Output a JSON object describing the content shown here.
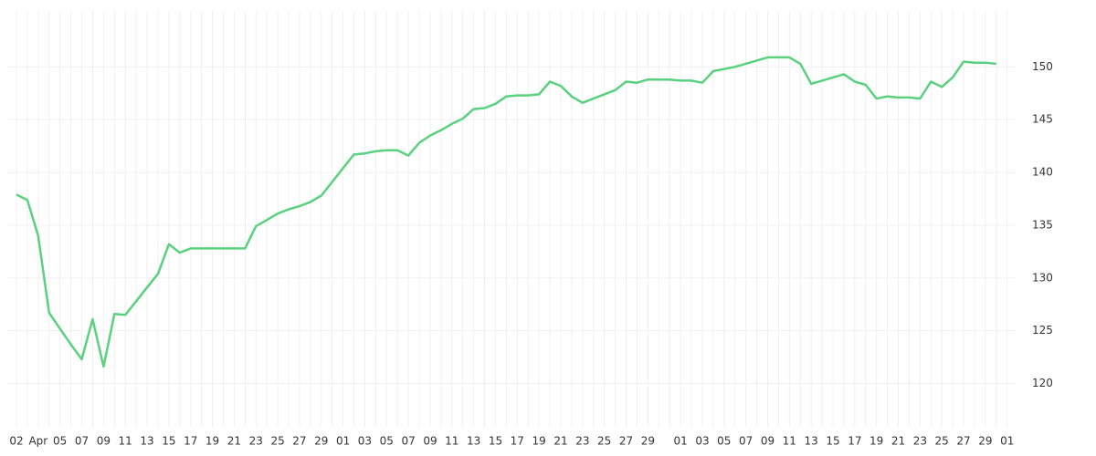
{
  "chart_data": {
    "type": "line",
    "categories": [
      "02",
      null,
      "Apr",
      null,
      "05",
      null,
      "07",
      null,
      "09",
      null,
      "11",
      null,
      "13",
      null,
      "15",
      null,
      "17",
      null,
      "19",
      null,
      "21",
      null,
      "23",
      null,
      "25",
      null,
      "27",
      null,
      "29",
      null,
      "01",
      null,
      "03",
      null,
      "05",
      null,
      "07",
      null,
      "09",
      null,
      "11",
      null,
      "13",
      null,
      "15",
      null,
      "17",
      null,
      "19",
      null,
      "21",
      null,
      "23",
      null,
      "25",
      null,
      "27",
      null,
      "29",
      null,
      null,
      "01",
      null,
      "03",
      null,
      "05",
      null,
      "07",
      null,
      "09",
      null,
      "11",
      null,
      "13",
      null,
      "15",
      null,
      "17",
      null,
      "19",
      null,
      "21",
      null,
      "23",
      null,
      "25",
      null,
      "27",
      null,
      "29",
      null,
      "01"
    ],
    "series": [
      {
        "color": "#5ad17f",
        "values": [
          137.9,
          137.4,
          134.0,
          126.7,
          125.2,
          123.7,
          122.3,
          126.1,
          121.6,
          126.6,
          126.5,
          127.8,
          129.1,
          130.4,
          133.2,
          132.4,
          132.8,
          132.8,
          132.8,
          132.8,
          132.8,
          132.8,
          134.9,
          135.5,
          136.1,
          136.5,
          136.8,
          137.2,
          137.8,
          139.1,
          140.4,
          141.7,
          141.8,
          142.0,
          142.1,
          142.1,
          141.6,
          142.8,
          143.5,
          144.0,
          144.6,
          145.1,
          146.0,
          146.1,
          146.5,
          147.2,
          147.3,
          147.3,
          147.4,
          148.6,
          148.2,
          147.2,
          146.6,
          147.0,
          147.4,
          147.8,
          148.6,
          148.5,
          148.8,
          148.8,
          148.8,
          148.7,
          148.7,
          148.5,
          149.6,
          149.8,
          150.0,
          150.3,
          150.6,
          150.9,
          150.9,
          150.9,
          150.3,
          148.4,
          148.7,
          149.0,
          149.3,
          148.6,
          148.3,
          147.0,
          147.2,
          147.1,
          147.1,
          147.0,
          148.6,
          148.1,
          149.0,
          150.5,
          150.4,
          150.4,
          150.3,
          null
        ]
      }
    ],
    "ylim": [
      115.9,
      155.3
    ],
    "yticks": [
      120,
      125,
      130,
      135,
      140,
      145,
      150
    ],
    "grid": true
  }
}
